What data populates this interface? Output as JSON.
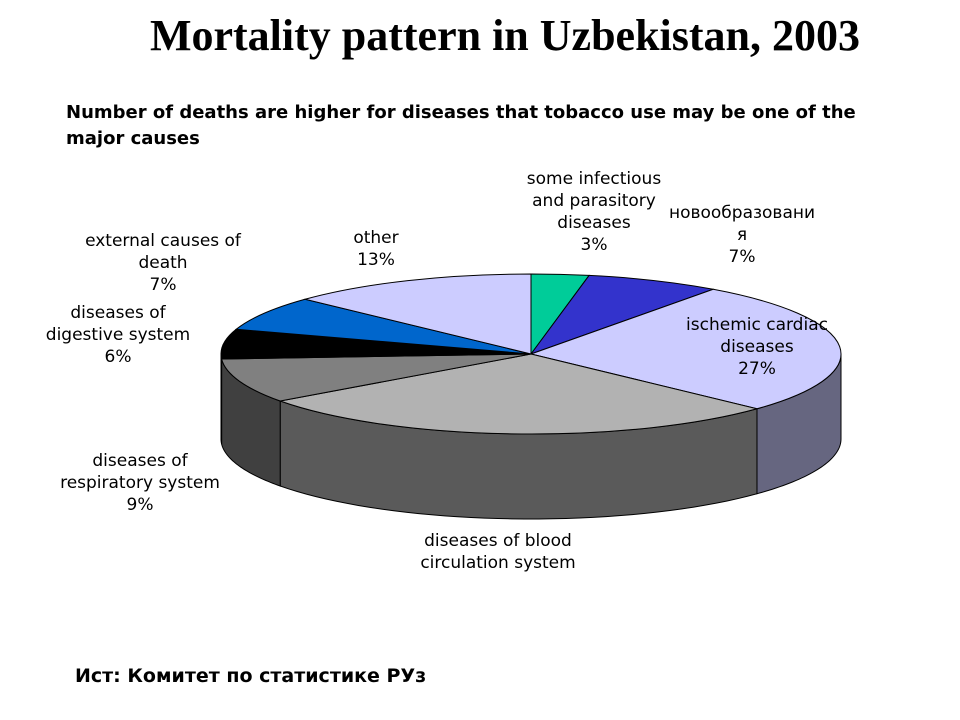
{
  "title": "Mortality pattern in Uzbekistan, 2003",
  "subtitle": "Number of deaths are higher for diseases that tobacco use may be one of the major causes",
  "source": "Ист: Комитет по статистике РУз",
  "chart_data": {
    "type": "pie",
    "three_d": true,
    "slices": [
      {
        "label": [
          "some infectious",
          "and parasitory",
          "diseases"
        ],
        "value": 3,
        "value_label": "3%",
        "color": "#00CC99",
        "side_color": "#00997A"
      },
      {
        "label": [
          "новообразовани",
          "я"
        ],
        "value": 7,
        "value_label": "7%",
        "color": "#3333CC",
        "side_color": "#26269A"
      },
      {
        "label": [
          "ischemic cardiac",
          "diseases"
        ],
        "value": 27,
        "value_label": "27%",
        "color": "#CCCCFF",
        "side_color": "#666680"
      },
      {
        "label": [
          "diseases of blood",
          "circulation system"
        ],
        "value": 28,
        "value_label": "",
        "color": "#B2B2B2",
        "side_color": "#5A5A5A"
      },
      {
        "label": [
          "diseases of",
          "respiratory system"
        ],
        "value": 9,
        "value_label": "9%",
        "color": "#808080",
        "side_color": "#404040"
      },
      {
        "label": [
          "diseases of",
          "digestive system"
        ],
        "value": 6,
        "value_label": "6%",
        "color": "#000000",
        "side_color": "#000000"
      },
      {
        "label": [
          "external causes of",
          "death"
        ],
        "value": 7,
        "value_label": "7%",
        "color": "#0066CC",
        "side_color": "#003F80"
      },
      {
        "label": [
          "other"
        ],
        "value": 13,
        "value_label": "13%",
        "color": "#CCCCFF",
        "side_color": "#666680"
      }
    ]
  }
}
